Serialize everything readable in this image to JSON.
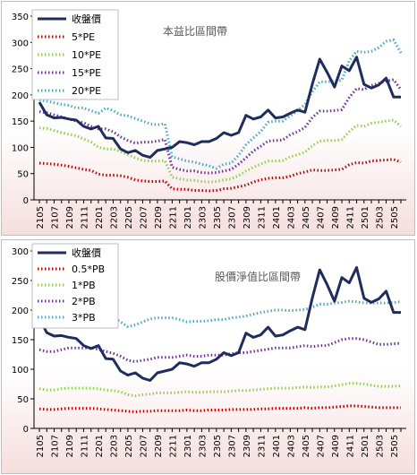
{
  "chart_data": [
    {
      "type": "line",
      "title": "本益比區間帶",
      "xlabel": "",
      "ylabel": "",
      "ylim": [
        0,
        350
      ],
      "yticks": [
        0,
        50,
        100,
        150,
        200,
        250,
        300,
        350
      ],
      "grid": false,
      "legend": "top-left",
      "x": [
        "2105",
        "2106",
        "2107",
        "2108",
        "2109",
        "2110",
        "2111",
        "2112",
        "2201",
        "2202",
        "2203",
        "2204",
        "2205",
        "2206",
        "2207",
        "2208",
        "2209",
        "2210",
        "2211",
        "2212",
        "2301",
        "2302",
        "2303",
        "2304",
        "2305",
        "2306",
        "2307",
        "2308",
        "2309",
        "2310",
        "2311",
        "2312",
        "2401",
        "2402",
        "2403",
        "2404",
        "2405",
        "2406",
        "2407",
        "2408",
        "2409",
        "2410",
        "2411",
        "2412",
        "2501",
        "2502",
        "2503",
        "2504",
        "2505",
        "2506"
      ],
      "xtick_labels": [
        "2105",
        "2107",
        "2109",
        "2111",
        "2201",
        "2203",
        "2205",
        "2207",
        "2209",
        "2211",
        "2301",
        "2303",
        "2305",
        "2307",
        "2309",
        "2311",
        "2401",
        "2403",
        "2405",
        "2407",
        "2409",
        "2411",
        "2501",
        "2503",
        "2505"
      ],
      "series": [
        {
          "name": "收盤價",
          "color": "#1f2d5e",
          "style": "solid",
          "values": [
            186,
            162,
            156,
            157,
            154,
            152,
            140,
            135,
            140,
            118,
            117,
            97,
            90,
            94,
            85,
            81,
            94,
            97,
            100,
            111,
            109,
            105,
            111,
            111,
            117,
            128,
            123,
            128,
            161,
            154,
            158,
            171,
            156,
            158,
            165,
            171,
            167,
            221,
            268,
            243,
            215,
            255,
            246,
            272,
            220,
            213,
            219,
            232,
            196,
            196
          ]
        },
        {
          "name": "5*PE",
          "color": "#c00000",
          "style": "dotted",
          "values": [
            70,
            69,
            68,
            66,
            64,
            61,
            58,
            56,
            49,
            47,
            47,
            46,
            43,
            38,
            36,
            35,
            35,
            36,
            21,
            20,
            20,
            18,
            18,
            17,
            18,
            21,
            22,
            25,
            28,
            34,
            38,
            41,
            42,
            42,
            45,
            50,
            53,
            57,
            56,
            56,
            57,
            58,
            67,
            71,
            70,
            74,
            75,
            76,
            77,
            72
          ]
        },
        {
          "name": "10*PE",
          "color": "#92d050",
          "style": "dotted",
          "values": [
            137,
            136,
            132,
            128,
            125,
            122,
            116,
            110,
            100,
            97,
            97,
            92,
            86,
            80,
            75,
            74,
            74,
            75,
            43,
            40,
            38,
            37,
            35,
            34,
            35,
            38,
            40,
            46,
            55,
            62,
            68,
            74,
            74,
            75,
            82,
            86,
            91,
            103,
            112,
            113,
            113,
            115,
            130,
            142,
            140,
            146,
            148,
            150,
            152,
            140
          ]
        },
        {
          "name": "15*PE",
          "color": "#7030a0",
          "style": "dotted",
          "values": [
            168,
            166,
            162,
            158,
            154,
            150,
            147,
            140,
            135,
            135,
            130,
            120,
            113,
            108,
            110,
            110,
            112,
            115,
            62,
            58,
            55,
            55,
            52,
            51,
            52,
            55,
            58,
            68,
            80,
            93,
            102,
            112,
            113,
            114,
            124,
            130,
            138,
            157,
            169,
            169,
            170,
            172,
            195,
            212,
            210,
            218,
            222,
            226,
            229,
            210
          ]
        },
        {
          "name": "20*PE",
          "color": "#4bacc6",
          "style": "dotted",
          "values": [
            190,
            188,
            185,
            182,
            180,
            175,
            175,
            170,
            165,
            175,
            170,
            162,
            160,
            155,
            150,
            145,
            143,
            145,
            82,
            78,
            74,
            72,
            68,
            65,
            60,
            68,
            70,
            85,
            105,
            118,
            130,
            148,
            150,
            150,
            160,
            170,
            182,
            206,
            225,
            225,
            226,
            228,
            265,
            283,
            281,
            283,
            290,
            302,
            305,
            280
          ]
        }
      ]
    },
    {
      "type": "line",
      "title": "股價淨值比區間帶",
      "xlabel": "",
      "ylabel": "",
      "ylim": [
        0,
        300
      ],
      "yticks": [
        0,
        50,
        100,
        150,
        200,
        250,
        300
      ],
      "grid": false,
      "legend": "top-left",
      "x": [
        "2105",
        "2106",
        "2107",
        "2108",
        "2109",
        "2110",
        "2111",
        "2112",
        "2201",
        "2202",
        "2203",
        "2204",
        "2205",
        "2206",
        "2207",
        "2208",
        "2209",
        "2210",
        "2211",
        "2212",
        "2301",
        "2302",
        "2303",
        "2304",
        "2305",
        "2306",
        "2307",
        "2308",
        "2309",
        "2310",
        "2311",
        "2312",
        "2401",
        "2402",
        "2403",
        "2404",
        "2405",
        "2406",
        "2407",
        "2408",
        "2409",
        "2410",
        "2411",
        "2412",
        "2501",
        "2502",
        "2503",
        "2504",
        "2505",
        "2506"
      ],
      "xtick_labels": [
        "2105",
        "2107",
        "2109",
        "2111",
        "2201",
        "2203",
        "2205",
        "2207",
        "2209",
        "2211",
        "2301",
        "2303",
        "2305",
        "2307",
        "2309",
        "2311",
        "2401",
        "2403",
        "2405",
        "2407",
        "2409",
        "2411",
        "2501",
        "2503",
        "2505"
      ],
      "series": [
        {
          "name": "收盤價",
          "color": "#1f2d5e",
          "style": "solid",
          "values": [
            186,
            162,
            156,
            157,
            154,
            152,
            140,
            135,
            140,
            118,
            117,
            97,
            90,
            94,
            85,
            81,
            94,
            97,
            100,
            111,
            109,
            105,
            111,
            111,
            117,
            128,
            123,
            128,
            161,
            154,
            158,
            171,
            156,
            158,
            165,
            171,
            167,
            221,
            268,
            243,
            215,
            255,
            246,
            272,
            220,
            213,
            219,
            232,
            196,
            196
          ]
        },
        {
          "name": "0.5*PB",
          "color": "#c00000",
          "style": "dotted",
          "values": [
            33,
            32,
            32,
            33,
            34,
            34,
            34,
            34,
            33,
            32,
            31,
            30,
            29,
            28,
            29,
            29,
            30,
            30,
            30,
            30,
            31,
            30,
            30,
            31,
            31,
            31,
            32,
            32,
            32,
            32,
            33,
            33,
            34,
            34,
            34,
            34,
            35,
            34,
            35,
            35,
            36,
            37,
            38,
            38,
            37,
            36,
            35,
            35,
            35,
            35
          ]
        },
        {
          "name": "1*PB",
          "color": "#92d050",
          "style": "dotted",
          "values": [
            67,
            65,
            65,
            67,
            68,
            68,
            68,
            68,
            67,
            65,
            64,
            62,
            57,
            55,
            57,
            58,
            60,
            60,
            60,
            61,
            62,
            61,
            61,
            62,
            62,
            62,
            63,
            64,
            64,
            65,
            66,
            67,
            68,
            68,
            68,
            69,
            70,
            69,
            70,
            70,
            72,
            74,
            76,
            76,
            75,
            73,
            71,
            71,
            71,
            72
          ]
        },
        {
          "name": "2*PB",
          "color": "#7030a0",
          "style": "dotted",
          "values": [
            133,
            130,
            130,
            133,
            136,
            136,
            136,
            136,
            134,
            130,
            127,
            122,
            115,
            113,
            115,
            117,
            120,
            120,
            120,
            122,
            124,
            122,
            122,
            124,
            124,
            124,
            126,
            128,
            128,
            130,
            132,
            134,
            136,
            136,
            136,
            138,
            140,
            138,
            140,
            140,
            145,
            150,
            152,
            152,
            150,
            146,
            142,
            142,
            143,
            144
          ]
        },
        {
          "name": "3*PB",
          "color": "#4bacc6",
          "style": "dotted",
          "values": [
            200,
            195,
            193,
            197,
            200,
            202,
            200,
            200,
            198,
            192,
            188,
            180,
            172,
            175,
            180,
            185,
            187,
            187,
            187,
            184,
            180,
            181,
            181,
            182,
            184,
            184,
            187,
            188,
            190,
            193,
            196,
            198,
            200,
            200,
            199,
            200,
            201,
            205,
            210,
            210,
            212,
            213,
            215,
            214,
            212,
            212,
            212,
            212,
            213,
            214
          ]
        }
      ]
    }
  ]
}
